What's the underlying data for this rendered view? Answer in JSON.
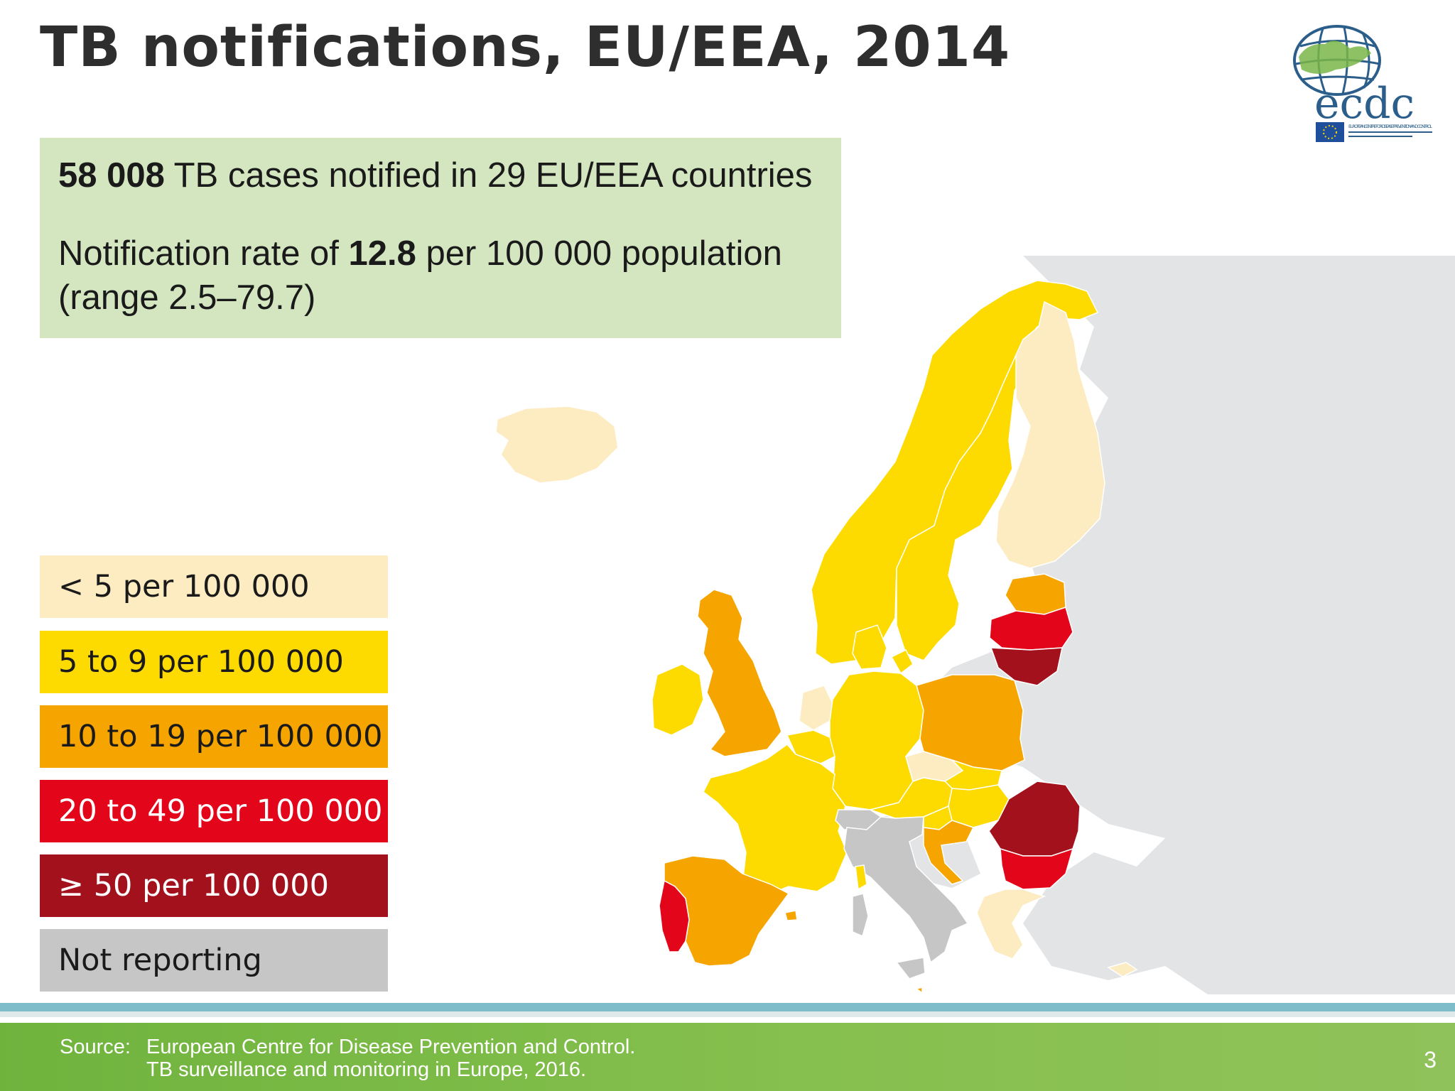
{
  "slide": {
    "title": "TB notifications, EU/EEA, 2014",
    "page_number": "3"
  },
  "summary": {
    "line1_bold": "58 008",
    "line1_rest": " TB cases notified in 29 EU/EEA countries",
    "line2_prefix": "Notification rate of ",
    "line2_bold": "12.8",
    "line2_suffix": " per 100 000 population",
    "line3": "(range 2.5–79.7)"
  },
  "legend": [
    {
      "label": "< 5 per 100 000",
      "color": "#fdebc2",
      "text_color": "#1a1a1a"
    },
    {
      "label": "5 to 9 per 100 000",
      "color": "#fedb00",
      "text_color": "#1a1a1a"
    },
    {
      "label": "10 to 19 per 100 000",
      "color": "#f6a500",
      "text_color": "#1a1a1a"
    },
    {
      "label": "20 to 49 per 100 000",
      "color": "#e3061a",
      "text_color": "#ffffff"
    },
    {
      "label": "≥ 50 per 100 000",
      "color": "#a3111c",
      "text_color": "#ffffff"
    },
    {
      "label": "Not reporting",
      "color": "#c6c6c6",
      "text_color": "#1a1a1a"
    }
  ],
  "source": {
    "label": "Source:",
    "line1": "European Centre for Disease Prevention and Control.",
    "line2": "TB surveillance and monitoring in Europe, 2016."
  },
  "logo": {
    "text": "ecdc",
    "subtext": "EUROPEAN CENTRE FOR DISEASE PREVENTION AND CONTROL"
  },
  "map": {
    "regions": [
      {
        "name": "Iceland",
        "category": "< 5 per 100 000"
      },
      {
        "name": "Norway",
        "category": "5 to 9 per 100 000"
      },
      {
        "name": "Sweden",
        "category": "5 to 9 per 100 000"
      },
      {
        "name": "Finland",
        "category": "< 5 per 100 000"
      },
      {
        "name": "Estonia",
        "category": "10 to 19 per 100 000"
      },
      {
        "name": "Latvia",
        "category": "20 to 49 per 100 000"
      },
      {
        "name": "Lithuania",
        "category": "≥ 50 per 100 000"
      },
      {
        "name": "United Kingdom",
        "category": "10 to 19 per 100 000"
      },
      {
        "name": "Ireland",
        "category": "5 to 9 per 100 000"
      },
      {
        "name": "Denmark",
        "category": "5 to 9 per 100 000"
      },
      {
        "name": "Netherlands",
        "category": "< 5 per 100 000"
      },
      {
        "name": "Belgium",
        "category": "5 to 9 per 100 000"
      },
      {
        "name": "Luxembourg",
        "category": "5 to 9 per 100 000"
      },
      {
        "name": "Germany",
        "category": "5 to 9 per 100 000"
      },
      {
        "name": "Poland",
        "category": "10 to 19 per 100 000"
      },
      {
        "name": "Czech Republic",
        "category": "< 5 per 100 000"
      },
      {
        "name": "Slovakia",
        "category": "5 to 9 per 100 000"
      },
      {
        "name": "Austria",
        "category": "5 to 9 per 100 000"
      },
      {
        "name": "Hungary",
        "category": "5 to 9 per 100 000"
      },
      {
        "name": "Slovenia",
        "category": "5 to 9 per 100 000"
      },
      {
        "name": "Croatia",
        "category": "10 to 19 per 100 000"
      },
      {
        "name": "Romania",
        "category": "≥ 50 per 100 000"
      },
      {
        "name": "Bulgaria",
        "category": "20 to 49 per 100 000"
      },
      {
        "name": "Greece",
        "category": "< 5 per 100 000"
      },
      {
        "name": "Cyprus",
        "category": "< 5 per 100 000"
      },
      {
        "name": "France",
        "category": "5 to 9 per 100 000"
      },
      {
        "name": "Spain",
        "category": "10 to 19 per 100 000"
      },
      {
        "name": "Portugal",
        "category": "20 to 49 per 100 000"
      },
      {
        "name": "Italy",
        "category": "Not reporting"
      },
      {
        "name": "Switzerland",
        "category": "Not reporting"
      },
      {
        "name": "Malta",
        "category": "10 to 19 per 100 000"
      }
    ]
  }
}
